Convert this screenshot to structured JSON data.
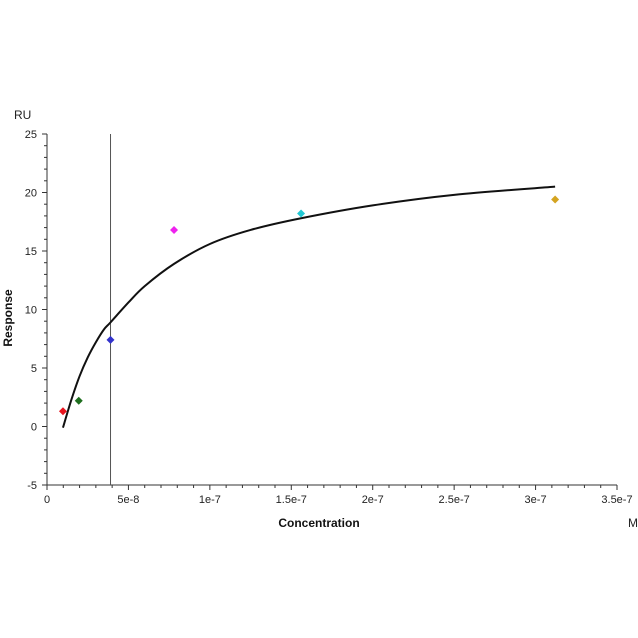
{
  "chart_data": {
    "type": "scatter",
    "xlabel": "Concentration",
    "ylabel": "Response",
    "x_unit": "M",
    "y_unit": "RU",
    "xlim": [
      0,
      3.5e-07
    ],
    "ylim": [
      -5,
      25
    ],
    "x_ticks": [
      {
        "value": 0,
        "label": "0"
      },
      {
        "value": 5e-08,
        "label": "5e-8"
      },
      {
        "value": 1e-07,
        "label": "1e-7"
      },
      {
        "value": 1.5e-07,
        "label": "1.5e-7"
      },
      {
        "value": 2e-07,
        "label": "2e-7"
      },
      {
        "value": 2.5e-07,
        "label": "2.5e-7"
      },
      {
        "value": 3e-07,
        "label": "3e-7"
      },
      {
        "value": 3.5e-07,
        "label": "3.5e-7"
      }
    ],
    "y_ticks": [
      {
        "value": 25,
        "label": "25"
      },
      {
        "value": 20,
        "label": "20"
      },
      {
        "value": 15,
        "label": "15"
      },
      {
        "value": 10,
        "label": "10"
      },
      {
        "value": 5,
        "label": "5"
      },
      {
        "value": 0,
        "label": "0"
      },
      {
        "value": -5,
        "label": "-5"
      }
    ],
    "grid": false,
    "points": [
      {
        "x": 9.8e-09,
        "y": 1.3,
        "color": "#e8141e"
      },
      {
        "x": 1.95e-08,
        "y": 2.2,
        "color": "#1e6e1e"
      },
      {
        "x": 3.9e-08,
        "y": 7.4,
        "color": "#3333cc"
      },
      {
        "x": 7.8e-08,
        "y": 16.8,
        "color": "#ee22ee"
      },
      {
        "x": 1.56e-07,
        "y": 18.2,
        "color": "#22c8d4"
      },
      {
        "x": 3.12e-07,
        "y": 19.4,
        "color": "#d4a420"
      }
    ],
    "fit_curve": [
      {
        "x": 9.8e-09,
        "y": -0.1
      },
      {
        "x": 1.5e-08,
        "y": 2.3
      },
      {
        "x": 2e-08,
        "y": 4.3
      },
      {
        "x": 2.5e-08,
        "y": 5.9
      },
      {
        "x": 3e-08,
        "y": 7.2
      },
      {
        "x": 3.5e-08,
        "y": 8.3
      },
      {
        "x": 3.9e-08,
        "y": 8.9
      },
      {
        "x": 5e-08,
        "y": 10.6
      },
      {
        "x": 6e-08,
        "y": 12.0
      },
      {
        "x": 7.8e-08,
        "y": 13.9
      },
      {
        "x": 1e-07,
        "y": 15.6
      },
      {
        "x": 1.25e-07,
        "y": 16.8
      },
      {
        "x": 1.56e-07,
        "y": 17.8
      },
      {
        "x": 2e-07,
        "y": 18.9
      },
      {
        "x": 2.5e-07,
        "y": 19.8
      },
      {
        "x": 3.12e-07,
        "y": 20.5
      }
    ],
    "fit_color": "#111111",
    "vertical_marker": {
      "x": 3.9e-08,
      "color": "#555555"
    }
  }
}
